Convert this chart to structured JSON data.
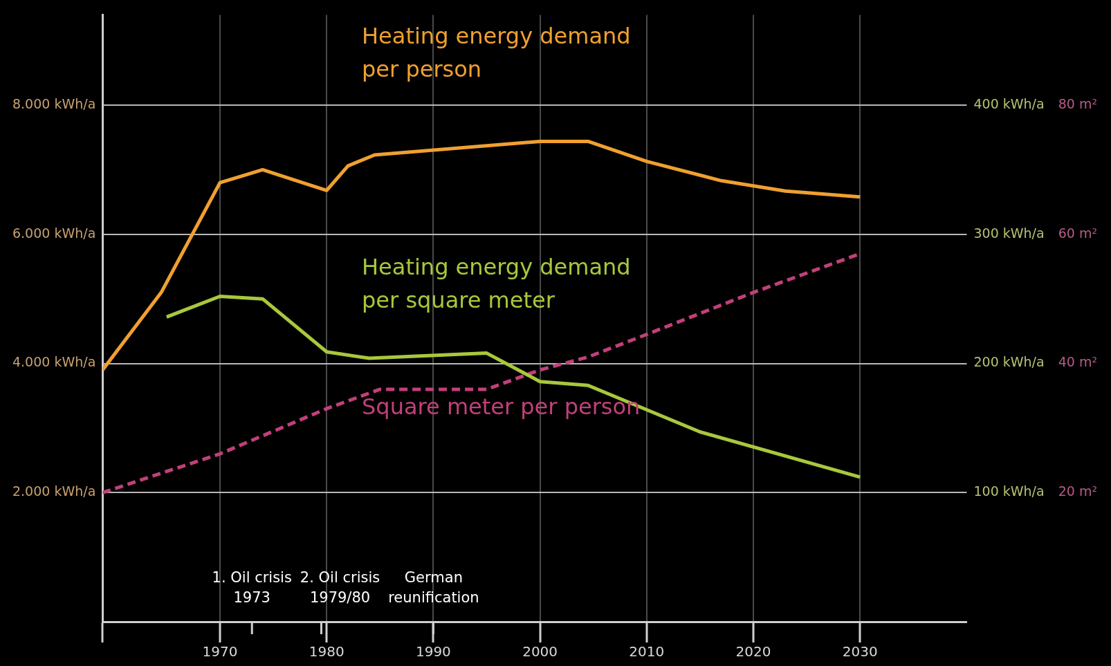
{
  "chart_data": {
    "type": "line",
    "series": [
      {
        "name": "Heating energy demand per person",
        "color": "#f0a030",
        "axis": "y",
        "x": [
          1959,
          1964.5,
          1970,
          1974,
          1980,
          1982,
          1984.5,
          2000,
          2004.5,
          2010,
          2017,
          2023,
          2030
        ],
        "values": [
          3900,
          5100,
          6800,
          7000,
          6680,
          7060,
          7230,
          7440,
          7440,
          7130,
          6830,
          6670,
          6580
        ]
      },
      {
        "name": "Heating energy demand per square meter",
        "color": "#a8c83c",
        "axis": "y2",
        "x": [
          1965,
          1970,
          1974,
          1980,
          1984,
          1995,
          2000,
          2004.5,
          2015,
          2030
        ],
        "values": [
          236,
          252,
          250,
          209,
          204,
          208,
          186,
          183,
          147,
          112
        ]
      },
      {
        "name": "Square meter per person",
        "color": "#c0407a",
        "axis": "y3",
        "line_style": "dashed",
        "x": [
          1959,
          1970,
          1980,
          1985,
          1995,
          2000,
          2004.5,
          2010,
          2020,
          2030
        ],
        "values": [
          20,
          26,
          33,
          36,
          36,
          39,
          41,
          44.5,
          51,
          57
        ]
      }
    ],
    "xlim": [
      1959,
      2040
    ],
    "xticks": [
      {
        "value": 1959,
        "label": null
      },
      1970,
      1980,
      1990,
      2000,
      2010,
      2020,
      2030
    ],
    "ylim": [
      0,
      9400
    ],
    "yticks": [
      {
        "value": 2000,
        "label": "2.000 kWh/a"
      },
      {
        "value": 4000,
        "label": "4.000 kWh/a"
      },
      {
        "value": 6000,
        "label": "6.000 kWh/a"
      },
      {
        "value": 8000,
        "label": "8.000 kWh/a"
      }
    ],
    "y2lim": [
      0,
      470
    ],
    "y2ticks": [
      {
        "value": 100,
        "label": "100 kWh/a"
      },
      {
        "value": 200,
        "label": "200 kWh/a"
      },
      {
        "value": 300,
        "label": "300 kWh/a"
      },
      {
        "value": 400,
        "label": "400 kWh/a"
      }
    ],
    "y3lim": [
      0,
      94
    ],
    "y3ticks": [
      {
        "value": 20,
        "label": "20 m²"
      },
      {
        "value": 40,
        "label": "40 m²"
      },
      {
        "value": 60,
        "label": "60 m²"
      },
      {
        "value": 80,
        "label": "80 m²"
      }
    ],
    "ref_lines": [
      {
        "axis": "x",
        "value": 1973,
        "label": "1. Oil crisis 1973"
      },
      {
        "axis": "x",
        "value": 1979.5,
        "label": "2. Oil crisis 1979/80"
      },
      {
        "axis": "x",
        "value": 1990,
        "label": "German reunification"
      }
    ],
    "grid": true,
    "legend": false,
    "marker": "none",
    "line_style": "solid"
  }
}
